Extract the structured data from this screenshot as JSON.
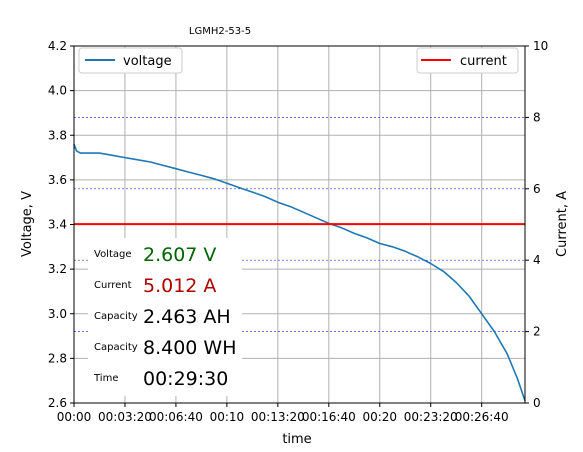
{
  "chart_data": {
    "type": "line",
    "title": "LGMH2-53-5",
    "xlabel": "time",
    "ylabel_left": "Voltage, V",
    "ylabel_right": "Current, A",
    "x_ticks": [
      "00:00",
      "00:03:20",
      "00:06:40",
      "00:10",
      "00:13:20",
      "00:16:40",
      "00:20",
      "00:23:20",
      "00:26:40"
    ],
    "x_tick_seconds": [
      0,
      200,
      400,
      600,
      800,
      1000,
      1200,
      1400,
      1600
    ],
    "xlim": [
      0,
      1770
    ],
    "ylim_left": [
      2.6,
      4.2
    ],
    "yticks_left": [
      "2.6",
      "2.8",
      "3.0",
      "3.2",
      "3.4",
      "3.6",
      "3.8",
      "4.0",
      "4.2"
    ],
    "ylim_right": [
      0,
      10
    ],
    "yticks_right": [
      "0",
      "2",
      "4",
      "6",
      "8",
      "10"
    ],
    "grid": true,
    "series": [
      {
        "name": "voltage",
        "axis": "left",
        "color": "#1f77b4",
        "x": [
          0,
          10,
          25,
          50,
          100,
          150,
          200,
          250,
          300,
          350,
          400,
          450,
          500,
          550,
          600,
          650,
          700,
          750,
          800,
          850,
          900,
          950,
          1000,
          1050,
          1100,
          1150,
          1200,
          1250,
          1300,
          1350,
          1400,
          1450,
          1500,
          1550,
          1600,
          1650,
          1700,
          1740,
          1770
        ],
        "values": [
          3.76,
          3.73,
          3.72,
          3.72,
          3.72,
          3.71,
          3.7,
          3.69,
          3.68,
          3.665,
          3.65,
          3.635,
          3.62,
          3.605,
          3.585,
          3.565,
          3.545,
          3.525,
          3.5,
          3.48,
          3.455,
          3.43,
          3.405,
          3.385,
          3.36,
          3.34,
          3.315,
          3.3,
          3.28,
          3.255,
          3.225,
          3.19,
          3.14,
          3.08,
          3.0,
          2.92,
          2.82,
          2.71,
          2.61
        ]
      },
      {
        "name": "current",
        "axis": "right",
        "color": "#ff0000",
        "x": [
          0,
          1770
        ],
        "values": [
          5.01,
          5.01
        ]
      }
    ],
    "legend": [
      "voltage",
      "current"
    ],
    "legend_position_left_series": "upper-left",
    "legend_position_right_series": "upper-right",
    "readout": [
      {
        "label": "Voltage",
        "value": "2.607 V",
        "color": "#006400"
      },
      {
        "label": "Current",
        "value": "5.012 A",
        "color": "#b00000"
      },
      {
        "label": "Capacity",
        "value": "2.463 AH",
        "color": "#000000"
      },
      {
        "label": "Capacity",
        "value": "8.400 WH",
        "color": "#000000"
      },
      {
        "label": "Time",
        "value": "00:29:30",
        "color": "#000000"
      }
    ]
  }
}
